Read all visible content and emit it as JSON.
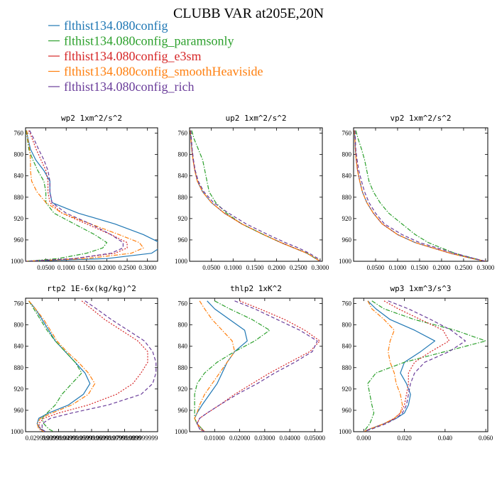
{
  "figure": {
    "title": "CLUBB VAR at205E,20N"
  },
  "colors": {
    "flthist134.080config": "#1f77b4",
    "flthist134.080config_paramsonly": "#2ca02c",
    "flthist134.080config_e3sm": "#d62728",
    "flthist134.080config_smoothHeaviside": "#ff7f0e",
    "flthist134.080config_rich": "#6a3d9a"
  },
  "legend": [
    {
      "label": "flthist134.080config",
      "color": "#1f77b4",
      "dash": "solid"
    },
    {
      "label": "flthist134.080config_paramsonly",
      "color": "#2ca02c",
      "dash": "dashdot"
    },
    {
      "label": "flthist134.080config_e3sm",
      "color": "#d62728",
      "dash": "dotted"
    },
    {
      "label": "flthist134.080config_smoothHeaviside",
      "color": "#ff7f0e",
      "dash": "dashdot"
    },
    {
      "label": "flthist134.080config_rich",
      "color": "#6a3d9a",
      "dash": "dashed"
    }
  ],
  "chart_data": [
    {
      "type": "line",
      "title": "wp2  1xm^2/s^2",
      "ylim": [
        1000,
        750
      ],
      "yticks": [
        760,
        800,
        840,
        880,
        920,
        960,
        1000
      ],
      "xlim": [
        0.0,
        0.325
      ],
      "xticks": [
        0.05,
        0.1,
        0.15,
        0.2,
        0.25,
        0.3
      ],
      "xtick_labels": [
        "0.0500",
        "0.1000",
        "0.1500",
        "0.2000",
        "0.2500",
        "0.3000"
      ],
      "y": [
        755,
        770,
        790,
        810,
        830,
        850,
        870,
        890,
        910,
        930,
        950,
        965,
        975,
        985,
        995,
        1000
      ],
      "series": [
        {
          "name": "flthist134.080config",
          "values": [
            0.002,
            0.006,
            0.012,
            0.025,
            0.045,
            0.06,
            0.06,
            0.065,
            0.13,
            0.22,
            0.29,
            0.33,
            0.33,
            0.31,
            0.2,
            0.0
          ]
        },
        {
          "name": "flthist134.080config_paramsonly",
          "values": [
            0.002,
            0.004,
            0.008,
            0.018,
            0.03,
            0.045,
            0.05,
            0.05,
            0.07,
            0.12,
            0.17,
            0.2,
            0.19,
            0.15,
            0.08,
            0.0
          ]
        },
        {
          "name": "flthist134.080config_e3sm",
          "values": [
            0.008,
            0.016,
            0.026,
            0.038,
            0.05,
            0.055,
            0.055,
            0.06,
            0.09,
            0.15,
            0.21,
            0.25,
            0.25,
            0.22,
            0.12,
            0.0
          ]
        },
        {
          "name": "flthist134.080config_smoothHeaviside",
          "values": [
            0.003,
            0.005,
            0.01,
            0.012,
            0.012,
            0.015,
            0.028,
            0.05,
            0.09,
            0.16,
            0.23,
            0.28,
            0.29,
            0.26,
            0.15,
            0.0
          ]
        },
        {
          "name": "flthist134.080config_rich",
          "values": [
            0.01,
            0.02,
            0.032,
            0.045,
            0.055,
            0.06,
            0.06,
            0.065,
            0.1,
            0.16,
            0.21,
            0.24,
            0.24,
            0.21,
            0.12,
            0.0
          ]
        }
      ]
    },
    {
      "type": "line",
      "title": "up2  1xm^2/s^2",
      "ylim": [
        1000,
        750
      ],
      "yticks": [
        760,
        800,
        840,
        880,
        920,
        960,
        1000
      ],
      "xlim": [
        0.0,
        0.305
      ],
      "xticks": [
        0.05,
        0.1,
        0.15,
        0.2,
        0.25,
        0.3
      ],
      "xtick_labels": [
        "0.0500",
        "0.1000",
        "0.1500",
        "0.2000",
        "0.2500",
        "0.3000"
      ],
      "y": [
        755,
        770,
        790,
        810,
        830,
        850,
        870,
        890,
        910,
        930,
        950,
        965,
        975,
        985,
        995,
        1000
      ],
      "series": [
        {
          "name": "flthist134.080config",
          "values": [
            0.002,
            0.003,
            0.005,
            0.008,
            0.012,
            0.018,
            0.03,
            0.05,
            0.08,
            0.12,
            0.17,
            0.21,
            0.24,
            0.27,
            0.29,
            0.3
          ]
        },
        {
          "name": "flthist134.080config_paramsonly",
          "values": [
            0.005,
            0.01,
            0.02,
            0.03,
            0.035,
            0.04,
            0.045,
            0.06,
            0.085,
            0.12,
            0.17,
            0.21,
            0.24,
            0.27,
            0.29,
            0.3
          ]
        },
        {
          "name": "flthist134.080config_e3sm",
          "values": [
            0.002,
            0.003,
            0.005,
            0.008,
            0.012,
            0.018,
            0.03,
            0.05,
            0.08,
            0.12,
            0.17,
            0.21,
            0.24,
            0.27,
            0.29,
            0.3
          ]
        },
        {
          "name": "flthist134.080config_smoothHeaviside",
          "values": [
            0.002,
            0.003,
            0.005,
            0.008,
            0.012,
            0.018,
            0.03,
            0.05,
            0.08,
            0.12,
            0.17,
            0.21,
            0.24,
            0.27,
            0.29,
            0.3
          ]
        },
        {
          "name": "flthist134.080config_rich",
          "values": [
            0.003,
            0.004,
            0.006,
            0.009,
            0.013,
            0.02,
            0.033,
            0.055,
            0.09,
            0.13,
            0.18,
            0.22,
            0.25,
            0.275,
            0.295,
            0.3
          ]
        }
      ]
    },
    {
      "type": "line",
      "title": "vp2  1xm^2/s^2",
      "ylim": [
        1000,
        750
      ],
      "yticks": [
        760,
        800,
        840,
        880,
        920,
        960,
        1000
      ],
      "xlim": [
        0.0,
        0.305
      ],
      "xticks": [
        0.05,
        0.1,
        0.15,
        0.2,
        0.25,
        0.3
      ],
      "xtick_labels": [
        "0.0500",
        "0.1000",
        "0.1500",
        "0.2000",
        "0.2500",
        "0.3000"
      ],
      "y": [
        755,
        770,
        790,
        810,
        830,
        850,
        870,
        890,
        910,
        930,
        950,
        965,
        975,
        985,
        995,
        1000
      ],
      "series": [
        {
          "name": "flthist134.080config",
          "values": [
            0.002,
            0.003,
            0.004,
            0.006,
            0.009,
            0.014,
            0.02,
            0.03,
            0.045,
            0.065,
            0.1,
            0.14,
            0.18,
            0.22,
            0.27,
            0.3
          ]
        },
        {
          "name": "flthist134.080config_paramsonly",
          "values": [
            0.005,
            0.01,
            0.018,
            0.025,
            0.03,
            0.035,
            0.045,
            0.06,
            0.08,
            0.11,
            0.14,
            0.17,
            0.2,
            0.23,
            0.275,
            0.3
          ]
        },
        {
          "name": "flthist134.080config_e3sm",
          "values": [
            0.002,
            0.003,
            0.004,
            0.006,
            0.009,
            0.014,
            0.02,
            0.03,
            0.045,
            0.065,
            0.1,
            0.14,
            0.18,
            0.22,
            0.27,
            0.3
          ]
        },
        {
          "name": "flthist134.080config_smoothHeaviside",
          "values": [
            0.002,
            0.003,
            0.004,
            0.006,
            0.009,
            0.014,
            0.02,
            0.03,
            0.045,
            0.065,
            0.1,
            0.14,
            0.18,
            0.22,
            0.27,
            0.3
          ]
        },
        {
          "name": "flthist134.080config_rich",
          "values": [
            0.003,
            0.004,
            0.005,
            0.008,
            0.012,
            0.018,
            0.025,
            0.035,
            0.05,
            0.07,
            0.11,
            0.15,
            0.19,
            0.23,
            0.275,
            0.3
          ]
        }
      ]
    },
    {
      "type": "line",
      "title": "rtp2  1E-6x(kg/kg)^2",
      "ylim": [
        1000,
        750
      ],
      "yticks": [
        760,
        800,
        840,
        880,
        920,
        960,
        1000
      ],
      "xlim": [
        0.02,
        0.1
      ],
      "xticks": [
        0.03,
        0.04,
        0.05,
        0.06,
        0.07,
        0.08,
        0.09
      ],
      "xtick_labels": [
        "0.029999999",
        "0.039999999",
        "0.049999999",
        "0.059999999",
        "0.069999999",
        "0.079999999",
        "0.089999999"
      ],
      "y": [
        755,
        770,
        790,
        810,
        830,
        850,
        870,
        890,
        910,
        930,
        950,
        965,
        975,
        985,
        995,
        1000
      ],
      "series": [
        {
          "name": "flthist134.080config",
          "values": [
            0.022,
            0.026,
            0.03,
            0.034,
            0.038,
            0.044,
            0.05,
            0.056,
            0.059,
            0.055,
            0.046,
            0.034,
            0.028,
            0.027,
            0.029,
            0.032
          ]
        },
        {
          "name": "flthist134.080config_paramsonly",
          "values": [
            0.022,
            0.025,
            0.029,
            0.033,
            0.038,
            0.044,
            0.05,
            0.054,
            0.048,
            0.042,
            0.038,
            0.033,
            0.03,
            0.031,
            0.034,
            0.037
          ]
        },
        {
          "name": "flthist134.080config_e3sm",
          "values": [
            0.054,
            0.06,
            0.068,
            0.078,
            0.088,
            0.094,
            0.094,
            0.09,
            0.085,
            0.075,
            0.058,
            0.04,
            0.031,
            0.028,
            0.029,
            0.031
          ]
        },
        {
          "name": "flthist134.080config_smoothHeaviside",
          "values": [
            0.022,
            0.026,
            0.031,
            0.035,
            0.039,
            0.045,
            0.052,
            0.058,
            0.062,
            0.058,
            0.048,
            0.036,
            0.029,
            0.027,
            0.028,
            0.031
          ]
        },
        {
          "name": "flthist134.080config_rich",
          "values": [
            0.056,
            0.063,
            0.072,
            0.082,
            0.092,
            0.097,
            0.099,
            0.099,
            0.097,
            0.09,
            0.07,
            0.048,
            0.035,
            0.03,
            0.03,
            0.032
          ]
        }
      ]
    },
    {
      "type": "line",
      "title": "thlp2  1xK^2",
      "ylim": [
        1000,
        750
      ],
      "yticks": [
        760,
        800,
        840,
        880,
        920,
        960,
        1000
      ],
      "xlim": [
        0.0,
        0.053
      ],
      "xticks": [
        0.01,
        0.02,
        0.03,
        0.04,
        0.05
      ],
      "xtick_labels": [
        "0.01000",
        "0.02000",
        "0.03000",
        "0.04000",
        "0.05000"
      ],
      "y": [
        755,
        770,
        790,
        810,
        830,
        850,
        870,
        890,
        910,
        930,
        950,
        965,
        975,
        985,
        995,
        1000
      ],
      "series": [
        {
          "name": "flthist134.080config",
          "values": [
            0.007,
            0.01,
            0.016,
            0.022,
            0.023,
            0.018,
            0.015,
            0.013,
            0.011,
            0.008,
            0.005,
            0.003,
            0.002,
            0.003,
            0.005,
            0.006
          ]
        },
        {
          "name": "flthist134.080config_paramsonly",
          "values": [
            0.01,
            0.016,
            0.025,
            0.032,
            0.026,
            0.018,
            0.011,
            0.006,
            0.003,
            0.002,
            0.002,
            0.002,
            0.002,
            0.003,
            0.005,
            0.006
          ]
        },
        {
          "name": "flthist134.080config_e3sm",
          "values": [
            0.02,
            0.028,
            0.038,
            0.046,
            0.052,
            0.048,
            0.04,
            0.032,
            0.025,
            0.018,
            0.012,
            0.007,
            0.004,
            0.003,
            0.004,
            0.006
          ]
        },
        {
          "name": "flthist134.080config_smoothHeaviside",
          "values": [
            0.004,
            0.006,
            0.009,
            0.013,
            0.017,
            0.018,
            0.015,
            0.012,
            0.009,
            0.006,
            0.004,
            0.003,
            0.002,
            0.003,
            0.005,
            0.006
          ]
        },
        {
          "name": "flthist134.080config_rich",
          "values": [
            0.018,
            0.026,
            0.035,
            0.044,
            0.051,
            0.049,
            0.042,
            0.034,
            0.027,
            0.019,
            0.012,
            0.007,
            0.004,
            0.003,
            0.004,
            0.006
          ]
        }
      ]
    },
    {
      "type": "line",
      "title": "wp3  1xm^3/s^3",
      "ylim": [
        1000,
        750
      ],
      "yticks": [
        760,
        800,
        840,
        880,
        920,
        960,
        1000
      ],
      "xlim": [
        -0.005,
        0.061
      ],
      "xticks": [
        0.0,
        0.02,
        0.04,
        0.06
      ],
      "xtick_labels": [
        "0.000",
        "0.020",
        "0.040",
        "0.060"
      ],
      "y": [
        755,
        770,
        790,
        810,
        830,
        850,
        870,
        890,
        910,
        930,
        950,
        965,
        975,
        985,
        995,
        1000
      ],
      "series": [
        {
          "name": "flthist134.080config",
          "values": [
            0.002,
            0.006,
            0.013,
            0.025,
            0.035,
            0.028,
            0.02,
            0.018,
            0.021,
            0.023,
            0.022,
            0.02,
            0.016,
            0.01,
            0.003,
            0.0
          ]
        },
        {
          "name": "flthist134.080config_paramsonly",
          "values": [
            0.004,
            0.01,
            0.025,
            0.045,
            0.06,
            0.04,
            0.02,
            0.006,
            0.002,
            0.003,
            0.004,
            0.005,
            0.004,
            0.003,
            0.001,
            0.0
          ]
        },
        {
          "name": "flthist134.080config_e3sm",
          "values": [
            0.01,
            0.017,
            0.028,
            0.039,
            0.042,
            0.033,
            0.025,
            0.022,
            0.022,
            0.021,
            0.02,
            0.018,
            0.015,
            0.01,
            0.003,
            0.0
          ]
        },
        {
          "name": "flthist134.080config_smoothHeaviside",
          "values": [
            0.002,
            0.004,
            0.01,
            0.015,
            0.013,
            0.012,
            0.013,
            0.015,
            0.016,
            0.018,
            0.019,
            0.018,
            0.015,
            0.01,
            0.003,
            0.0
          ]
        },
        {
          "name": "flthist134.080config_rich",
          "values": [
            0.012,
            0.022,
            0.033,
            0.043,
            0.05,
            0.042,
            0.03,
            0.025,
            0.023,
            0.022,
            0.021,
            0.019,
            0.016,
            0.011,
            0.004,
            0.0
          ]
        }
      ]
    }
  ]
}
